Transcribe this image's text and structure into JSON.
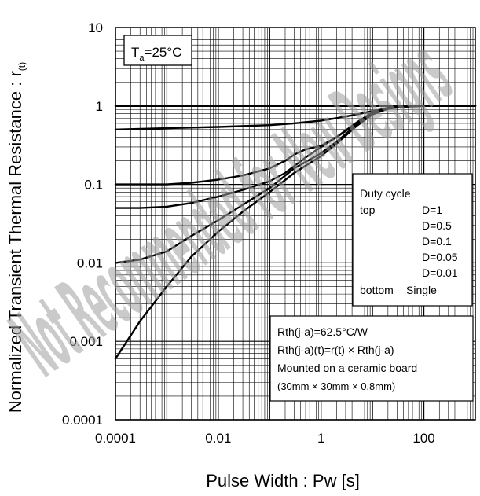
{
  "chart_data": {
    "type": "line",
    "title": "",
    "xlabel": "Pulse Width : Pw [s]",
    "ylabel": "Normalized Transient Thermal Resistance : r(t)",
    "ylabel_main": "Normalized Transient Thermal Resistance : r",
    "ylabel_sub": "(t)",
    "xscale": "log",
    "yscale": "log",
    "xlim": [
      0.0001,
      1000
    ],
    "ylim": [
      0.0001,
      10
    ],
    "grid": true,
    "x_ticks": [
      {
        "value": 0.0001,
        "label": "0.0001"
      },
      {
        "value": 0.01,
        "label": "0.01"
      },
      {
        "value": 1,
        "label": "1"
      },
      {
        "value": 100,
        "label": "100"
      }
    ],
    "y_ticks": [
      {
        "value": 10,
        "label": "10"
      },
      {
        "value": 1,
        "label": "1"
      },
      {
        "value": 0.1,
        "label": "0.1"
      },
      {
        "value": 0.01,
        "label": "0.01"
      },
      {
        "value": 0.001,
        "label": "0.001"
      },
      {
        "value": 0.0001,
        "label": "0.0001"
      }
    ],
    "condition": {
      "main": "T",
      "sub": "a",
      "rest": "=25°C"
    },
    "legend": {
      "placement": "right",
      "title": "Duty cycle",
      "top_label": "top",
      "bottom_label": "bottom",
      "entries": [
        "D=1",
        "D=0.5",
        "D=0.1",
        "D=0.05",
        "D=0.01",
        "Single"
      ]
    },
    "notes": [
      "Rth(j-a)=62.5°C/W",
      "Rth(j-a)(t)=r(t) × Rth(j-a)",
      "Mounted on a ceramic board",
      "(30mm × 30mm × 0.8mm)"
    ],
    "watermark": "Not Recommended for New Designs",
    "series": [
      {
        "name": "D=1",
        "x": [
          0.0001,
          1000
        ],
        "y": [
          1,
          1
        ]
      },
      {
        "name": "D=0.5",
        "x": [
          0.0001,
          0.001,
          0.01,
          0.1,
          0.3,
          1,
          2,
          5,
          10,
          20,
          50,
          100,
          1000
        ],
        "y": [
          0.5,
          0.52,
          0.54,
          0.57,
          0.6,
          0.65,
          0.7,
          0.78,
          0.86,
          0.93,
          0.98,
          1,
          1
        ]
      },
      {
        "name": "D=0.1",
        "x": [
          0.0001,
          0.001,
          0.003,
          0.01,
          0.03,
          0.1,
          0.2,
          0.3,
          0.5,
          1,
          2,
          5,
          10,
          20,
          50,
          100,
          1000
        ],
        "y": [
          0.1,
          0.1,
          0.105,
          0.115,
          0.13,
          0.16,
          0.2,
          0.24,
          0.28,
          0.31,
          0.4,
          0.62,
          0.83,
          0.95,
          1,
          1,
          1
        ]
      },
      {
        "name": "D=0.05",
        "x": [
          0.0001,
          0.0003,
          0.001,
          0.003,
          0.01,
          0.03,
          0.1,
          0.2,
          0.5,
          1,
          2,
          5,
          10,
          20,
          50,
          100,
          1000
        ],
        "y": [
          0.05,
          0.05,
          0.052,
          0.058,
          0.07,
          0.085,
          0.11,
          0.14,
          0.22,
          0.3,
          0.4,
          0.6,
          0.8,
          0.93,
          1,
          1,
          1
        ]
      },
      {
        "name": "D=0.01",
        "x": [
          0.0001,
          0.0003,
          0.001,
          0.003,
          0.01,
          0.03,
          0.1,
          0.3,
          1,
          2,
          5,
          10,
          20,
          50,
          100,
          1000
        ],
        "y": [
          0.01,
          0.011,
          0.014,
          0.022,
          0.035,
          0.055,
          0.09,
          0.16,
          0.25,
          0.35,
          0.58,
          0.8,
          0.93,
          1,
          1,
          1
        ]
      },
      {
        "name": "Single",
        "x": [
          0.0001,
          0.0003,
          0.001,
          0.003,
          0.01,
          0.03,
          0.1,
          0.3,
          1,
          2,
          5,
          10,
          20,
          50,
          100,
          1000
        ],
        "y": [
          0.0006,
          0.0018,
          0.005,
          0.012,
          0.025,
          0.045,
          0.08,
          0.14,
          0.23,
          0.33,
          0.56,
          0.78,
          0.92,
          1,
          1,
          1
        ]
      }
    ]
  }
}
